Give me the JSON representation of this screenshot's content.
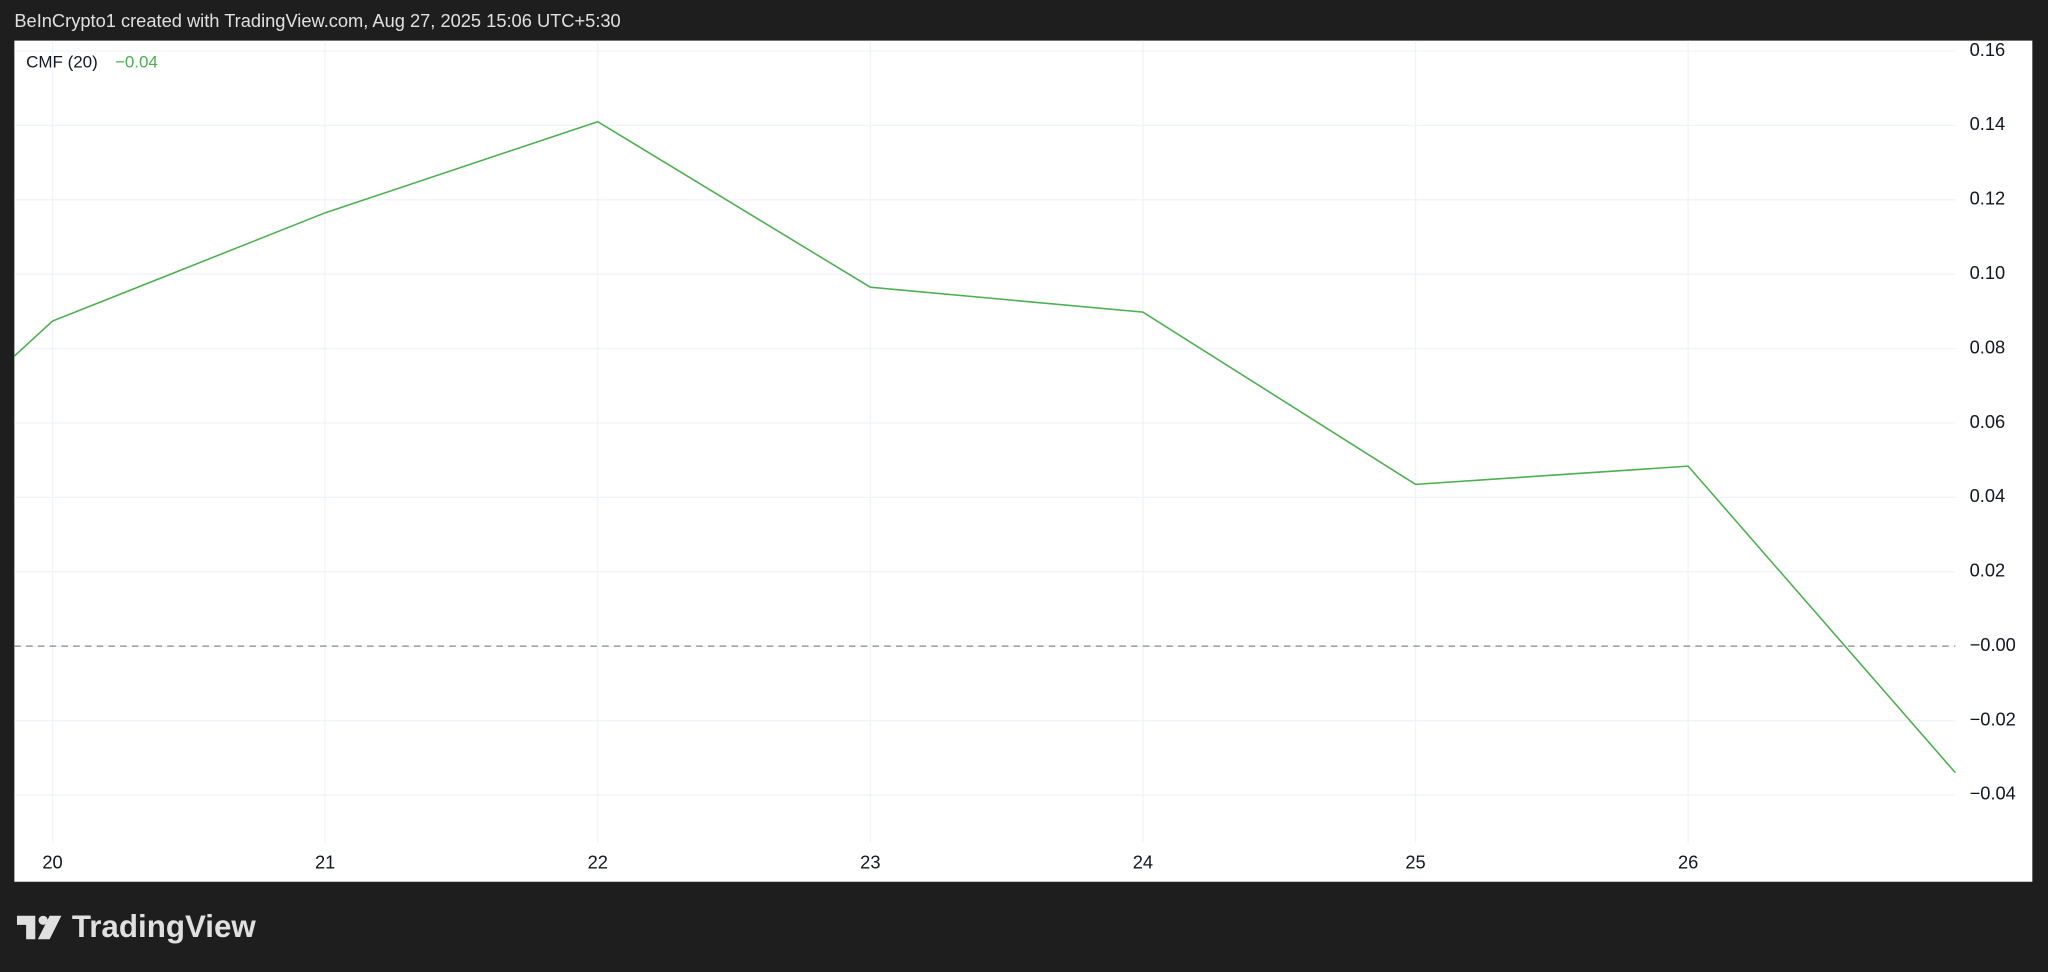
{
  "header": "BeInCrypto1 created with TradingView.com, Aug 27, 2025 15:06 UTC+5:30",
  "footer_logo": "TradingView",
  "chart_data": {
    "type": "line",
    "legend_name": "CMF (20)",
    "legend_value": "−0.04",
    "x": [
      19.86,
      20,
      21,
      22,
      23,
      24,
      25,
      26,
      26.98
    ],
    "series": [
      {
        "name": "CMF (20)",
        "color": "#4caf50",
        "values": [
          0.078,
          0.0874,
          0.1165,
          0.141,
          0.0965,
          0.0898,
          0.0435,
          0.0484,
          -0.034
        ]
      }
    ],
    "xlim": [
      19.86,
      26.98
    ],
    "xticks": [
      20,
      21,
      22,
      23,
      24,
      25,
      26
    ],
    "ylim": [
      -0.05,
      0.1628
    ],
    "yticks": [
      0.16,
      0.14,
      0.12,
      {
        "value": 0.1,
        "label": "0.10"
      },
      0.08,
      0.06,
      0.04,
      0.02,
      {
        "value": 0,
        "label": "−0.00"
      },
      {
        "value": -0.02,
        "label": "−0.02"
      },
      {
        "value": -0.04,
        "label": "−0.04"
      }
    ],
    "grid": true,
    "zero_line": true
  }
}
